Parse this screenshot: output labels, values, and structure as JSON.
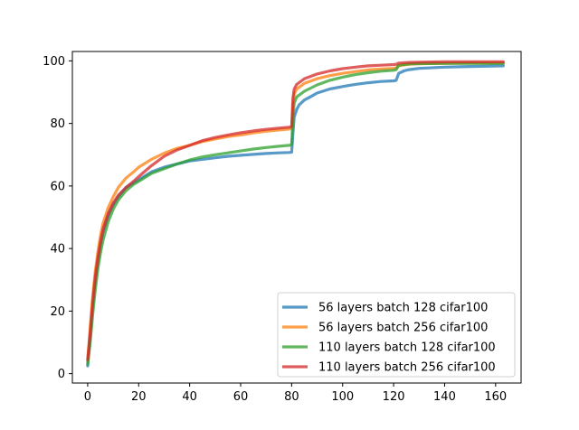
{
  "chart_data": {
    "type": "line",
    "xlim": [
      -6,
      170
    ],
    "ylim": [
      -3,
      103
    ],
    "xticks": [
      0,
      20,
      40,
      60,
      80,
      100,
      120,
      140,
      160
    ],
    "yticks": [
      0,
      20,
      40,
      60,
      80,
      100
    ],
    "grid": false,
    "legend_position": "lower-right",
    "series": [
      {
        "name": "56 layers batch 128 cifar100",
        "color": "#1f77b4",
        "points": [
          [
            0,
            2.5
          ],
          [
            1,
            12
          ],
          [
            2,
            22
          ],
          [
            3,
            30
          ],
          [
            4,
            36
          ],
          [
            5,
            41
          ],
          [
            6,
            45
          ],
          [
            8,
            50.5
          ],
          [
            10,
            54
          ],
          [
            12,
            56.5
          ],
          [
            15,
            59.5
          ],
          [
            18,
            61
          ],
          [
            20,
            62
          ],
          [
            25,
            64.5
          ],
          [
            30,
            66
          ],
          [
            35,
            67
          ],
          [
            40,
            68
          ],
          [
            45,
            68.5
          ],
          [
            50,
            69
          ],
          [
            55,
            69.5
          ],
          [
            60,
            69.8
          ],
          [
            65,
            70.1
          ],
          [
            70,
            70.4
          ],
          [
            75,
            70.6
          ],
          [
            79,
            70.7
          ],
          [
            80,
            70.8
          ],
          [
            80.5,
            77
          ],
          [
            81,
            82
          ],
          [
            82,
            84.5
          ],
          [
            83,
            86
          ],
          [
            85,
            87.5
          ],
          [
            88,
            88.8
          ],
          [
            90,
            89.7
          ],
          [
            95,
            91
          ],
          [
            100,
            91.8
          ],
          [
            105,
            92.5
          ],
          [
            110,
            93
          ],
          [
            115,
            93.4
          ],
          [
            120,
            93.6
          ],
          [
            121,
            93.8
          ],
          [
            122,
            96
          ],
          [
            124,
            96.8
          ],
          [
            126,
            97.2
          ],
          [
            130,
            97.6
          ],
          [
            140,
            98
          ],
          [
            150,
            98.2
          ],
          [
            163,
            98.4
          ]
        ]
      },
      {
        "name": "56 layers batch 256 cifar100",
        "color": "#ff7f0e",
        "points": [
          [
            0,
            4
          ],
          [
            1,
            15
          ],
          [
            2,
            25
          ],
          [
            3,
            33
          ],
          [
            4,
            39
          ],
          [
            5,
            44
          ],
          [
            6,
            48
          ],
          [
            8,
            53
          ],
          [
            10,
            56.5
          ],
          [
            12,
            59.5
          ],
          [
            15,
            62.5
          ],
          [
            18,
            64.5
          ],
          [
            20,
            66
          ],
          [
            25,
            68.5
          ],
          [
            30,
            70.5
          ],
          [
            35,
            72
          ],
          [
            40,
            73
          ],
          [
            45,
            74.2
          ],
          [
            50,
            75
          ],
          [
            55,
            75.8
          ],
          [
            60,
            76.3
          ],
          [
            65,
            77
          ],
          [
            70,
            77.5
          ],
          [
            75,
            77.9
          ],
          [
            79,
            78.2
          ],
          [
            80,
            78.4
          ],
          [
            80.5,
            86
          ],
          [
            81,
            89.5
          ],
          [
            82,
            91
          ],
          [
            85,
            92.8
          ],
          [
            90,
            94.3
          ],
          [
            95,
            95.3
          ],
          [
            100,
            96
          ],
          [
            105,
            96.6
          ],
          [
            110,
            97.1
          ],
          [
            115,
            97.4
          ],
          [
            120,
            97.6
          ],
          [
            121,
            97.7
          ],
          [
            122,
            98.5
          ],
          [
            126,
            98.9
          ],
          [
            130,
            99.1
          ],
          [
            140,
            99.2
          ],
          [
            150,
            99.3
          ],
          [
            163,
            99.3
          ]
        ]
      },
      {
        "name": "110 layers batch 128 cifar100",
        "color": "#2ca02c",
        "points": [
          [
            0,
            3
          ],
          [
            1,
            10
          ],
          [
            2,
            19
          ],
          [
            3,
            27
          ],
          [
            4,
            33.5
          ],
          [
            5,
            38.5
          ],
          [
            6,
            42.5
          ],
          [
            8,
            48.5
          ],
          [
            10,
            52.5
          ],
          [
            12,
            55.5
          ],
          [
            15,
            58.5
          ],
          [
            18,
            60.5
          ],
          [
            20,
            61.5
          ],
          [
            25,
            64
          ],
          [
            30,
            65.5
          ],
          [
            35,
            67
          ],
          [
            40,
            68.3
          ],
          [
            45,
            69.3
          ],
          [
            50,
            70
          ],
          [
            55,
            70.6
          ],
          [
            60,
            71.2
          ],
          [
            65,
            71.8
          ],
          [
            70,
            72.3
          ],
          [
            75,
            72.7
          ],
          [
            79,
            73
          ],
          [
            80,
            73.2
          ],
          [
            80.5,
            82
          ],
          [
            81,
            86.5
          ],
          [
            82,
            88.5
          ],
          [
            85,
            90.3
          ],
          [
            90,
            92.3
          ],
          [
            95,
            93.8
          ],
          [
            100,
            94.8
          ],
          [
            105,
            95.6
          ],
          [
            110,
            96.2
          ],
          [
            115,
            96.7
          ],
          [
            120,
            97
          ],
          [
            121,
            97.2
          ],
          [
            122,
            98.6
          ],
          [
            126,
            99
          ],
          [
            130,
            99.1
          ],
          [
            140,
            99.2
          ],
          [
            150,
            99.2
          ],
          [
            163,
            99.2
          ]
        ]
      },
      {
        "name": "110 layers batch 256 cifar100",
        "color": "#d62728",
        "points": [
          [
            0,
            4.5
          ],
          [
            1,
            13
          ],
          [
            2,
            23
          ],
          [
            3,
            31
          ],
          [
            4,
            37
          ],
          [
            5,
            42
          ],
          [
            6,
            46
          ],
          [
            8,
            51
          ],
          [
            10,
            54.5
          ],
          [
            12,
            57
          ],
          [
            15,
            59.5
          ],
          [
            18,
            61.5
          ],
          [
            20,
            63
          ],
          [
            25,
            66.5
          ],
          [
            30,
            69.5
          ],
          [
            35,
            71.5
          ],
          [
            40,
            73
          ],
          [
            45,
            74.5
          ],
          [
            50,
            75.5
          ],
          [
            55,
            76.3
          ],
          [
            60,
            77
          ],
          [
            65,
            77.6
          ],
          [
            70,
            78.1
          ],
          [
            75,
            78.5
          ],
          [
            79,
            78.8
          ],
          [
            80,
            79
          ],
          [
            80.5,
            88
          ],
          [
            81,
            91
          ],
          [
            82,
            92.5
          ],
          [
            85,
            94.3
          ],
          [
            90,
            95.8
          ],
          [
            95,
            96.8
          ],
          [
            100,
            97.5
          ],
          [
            105,
            98
          ],
          [
            110,
            98.4
          ],
          [
            115,
            98.6
          ],
          [
            120,
            98.8
          ],
          [
            121,
            98.9
          ],
          [
            122,
            99.3
          ],
          [
            126,
            99.5
          ],
          [
            130,
            99.6
          ],
          [
            140,
            99.7
          ],
          [
            150,
            99.7
          ],
          [
            163,
            99.7
          ]
        ]
      }
    ]
  }
}
